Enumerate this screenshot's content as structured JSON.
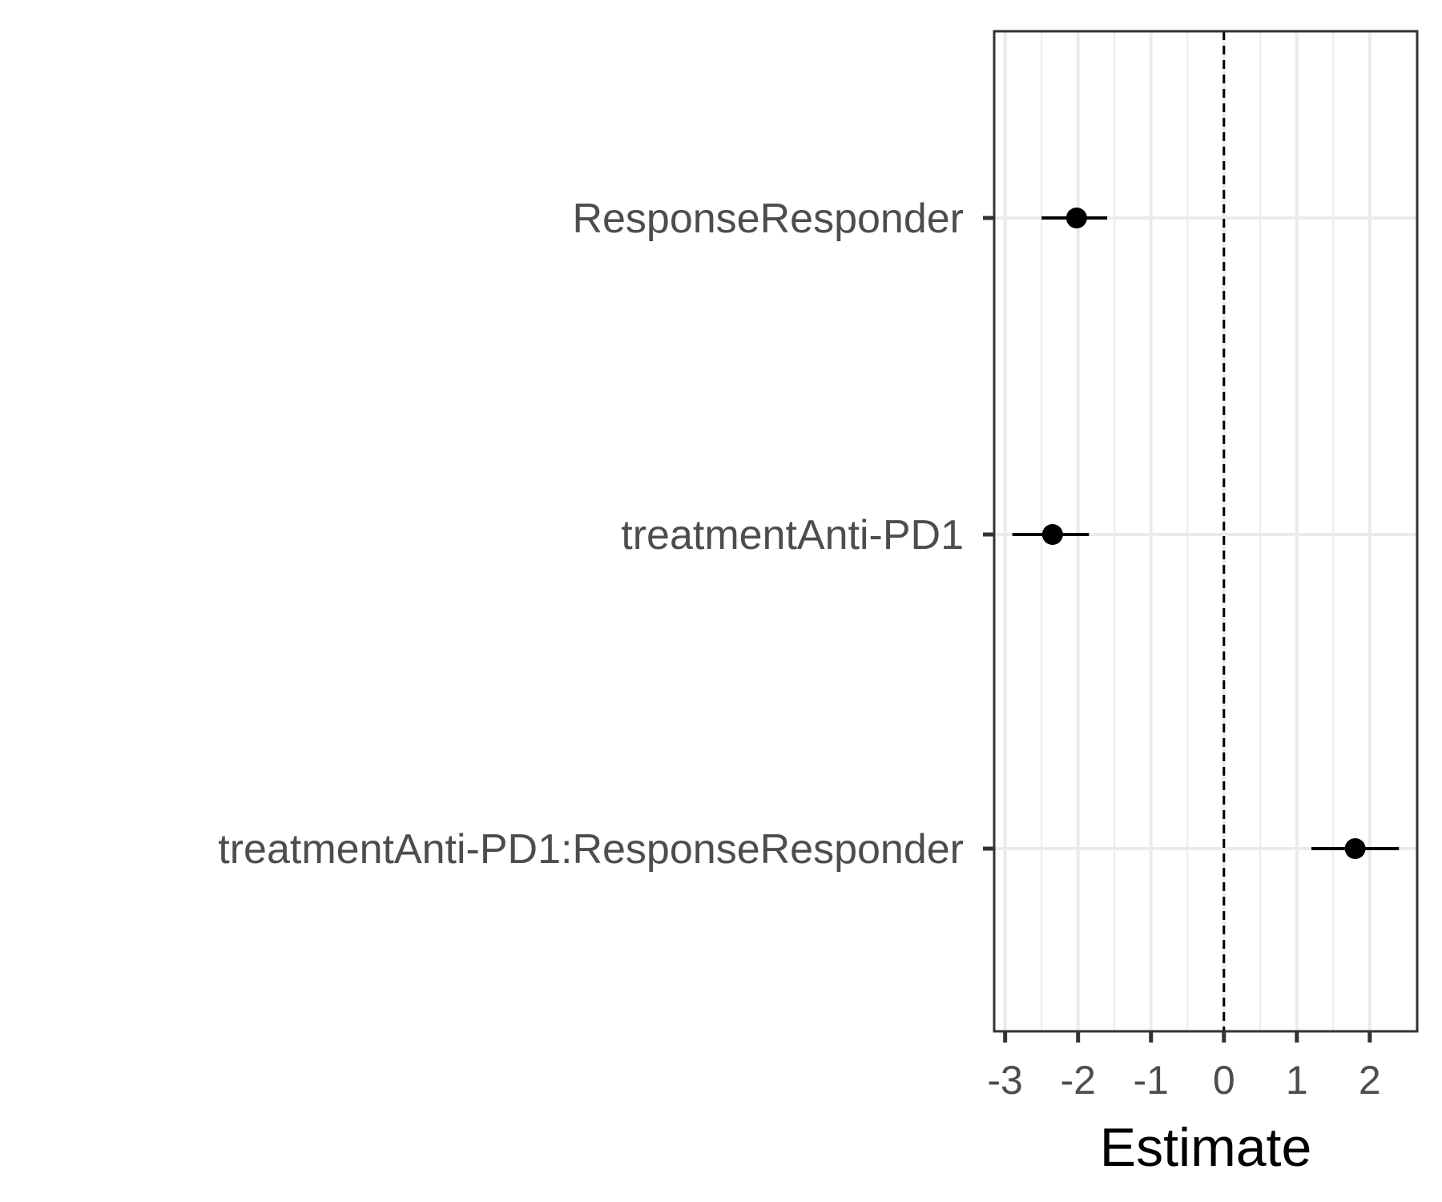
{
  "chart_data": {
    "type": "scatter",
    "xlabel": "Estimate",
    "ylabel": "",
    "xlim": [
      -3.15,
      2.65
    ],
    "x_ticks": [
      -3,
      -2,
      -1,
      0,
      1,
      2
    ],
    "x_tick_labels": [
      "-3",
      "-2",
      "-1",
      "0",
      "1",
      "2"
    ],
    "categories": [
      "ResponseResponder",
      "treatmentAnti-PD1",
      "treatmentAnti-PD1:ResponseResponder"
    ],
    "estimates": [
      -2.02,
      -2.35,
      1.8
    ],
    "ci_low": [
      -2.5,
      -2.9,
      1.2
    ],
    "ci_high": [
      -1.6,
      -1.85,
      2.4
    ],
    "reference_line": 0,
    "grid": true,
    "legend": "none",
    "colors": {
      "point": "#000000",
      "grid": "#ebebeb",
      "panel_border": "#333333",
      "tick_label": "#4d4d4d",
      "reference_line": "#000000"
    }
  }
}
